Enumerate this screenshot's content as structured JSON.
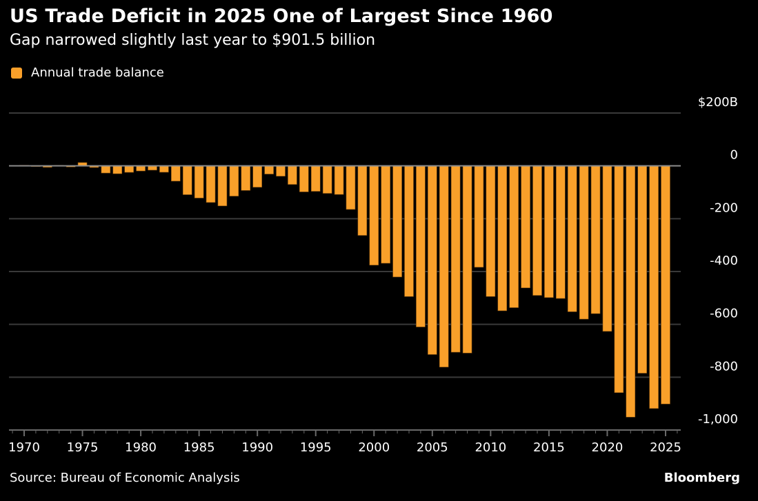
{
  "title": "US Trade Deficit in 2025 One of Largest Since 1960",
  "subtitle": "Gap narrowed slightly last year to $901.5 billion",
  "source": "Source: Bureau of Economic Analysis",
  "brand": "Bloomberg",
  "colors": {
    "background": "#000000",
    "bar": "#F9A02A",
    "bar_outline": "#7a4a10",
    "grid": "#3a3a3a",
    "zero_line": "#8c8c8c",
    "axis": "#6a6a6a",
    "text": "#ffffff"
  },
  "chart_data": {
    "type": "bar",
    "title": "US Trade Deficit in 2025 One of Largest Since 1960",
    "subtitle": "Gap narrowed slightly last year to $901.5 billion",
    "xlabel": "",
    "ylabel": "",
    "legend": {
      "position": "top-left",
      "entries": [
        "Annual trade balance"
      ]
    },
    "grid": true,
    "ylim": [
      -1000,
      200
    ],
    "yticks": [
      200,
      0,
      -200,
      -400,
      -600,
      -800,
      -1000
    ],
    "ytick_labels": [
      "$200B",
      "0",
      "-200",
      "-400",
      "-600",
      "-800",
      "-1,000"
    ],
    "xlim": [
      1969,
      2026
    ],
    "xticks": [
      1970,
      1975,
      1980,
      1985,
      1990,
      1995,
      2000,
      2005,
      2010,
      2015,
      2020,
      2025
    ],
    "xtick_labels": [
      "1970",
      "1975",
      "1980",
      "1985",
      "1990",
      "1995",
      "2000",
      "2005",
      "2010",
      "2015",
      "2020",
      "2025"
    ],
    "series": [
      {
        "name": "Annual trade balance",
        "unit": "USD billions",
        "x": [
          1970,
          1971,
          1972,
          1973,
          1974,
          1975,
          1976,
          1977,
          1978,
          1979,
          1980,
          1981,
          1982,
          1983,
          1984,
          1985,
          1986,
          1987,
          1988,
          1989,
          1990,
          1991,
          1992,
          1993,
          1994,
          1995,
          1996,
          1997,
          1998,
          1999,
          2000,
          2001,
          2002,
          2003,
          2004,
          2005,
          2006,
          2007,
          2008,
          2009,
          2010,
          2011,
          2012,
          2013,
          2014,
          2015,
          2016,
          2017,
          2018,
          2019,
          2020,
          2021,
          2022,
          2023,
          2024,
          2025
        ],
        "values": [
          2.3,
          -1.3,
          -5.4,
          1.9,
          -4.3,
          12.4,
          -6.1,
          -27.2,
          -29.8,
          -24.6,
          -19.4,
          -16.2,
          -24.2,
          -57.8,
          -109.1,
          -121.9,
          -138.5,
          -151.7,
          -114.6,
          -93.1,
          -80.9,
          -31.1,
          -39.2,
          -70.3,
          -98.5,
          -96.4,
          -104.1,
          -108.3,
          -164.9,
          -263.2,
          -375.8,
          -368.7,
          -420.7,
          -494.8,
          -609.9,
          -714.2,
          -761.7,
          -705.4,
          -708.7,
          -383.8,
          -494.7,
          -548.6,
          -536.8,
          -461.9,
          -490.3,
          -498.5,
          -502.0,
          -552.3,
          -580.1,
          -559.4,
          -626.4,
          -858.5,
          -951.2,
          -784.9,
          -918.4,
          -901.5
        ]
      }
    ]
  }
}
